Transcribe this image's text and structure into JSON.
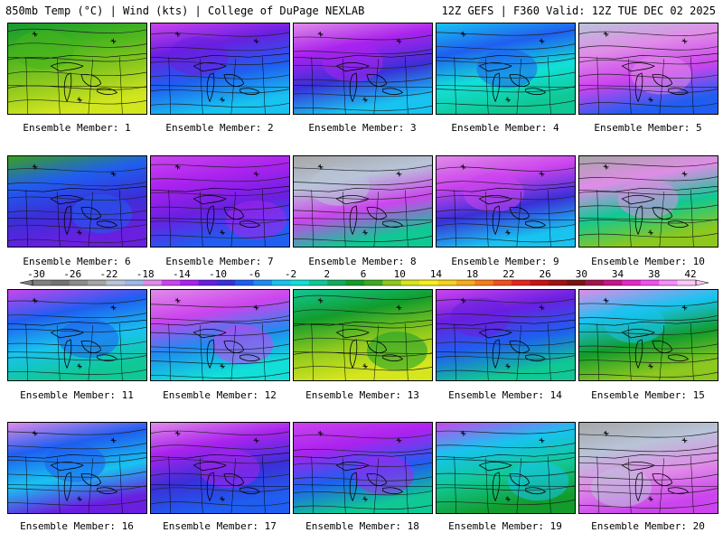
{
  "header": {
    "left": "850mb Temp (°C) | Wind (kts) | College of DuPage NEXLAB",
    "right": "12Z GEFS | F360 Valid: 12Z TUE DEC 02 2025"
  },
  "colorbar": {
    "labels": [
      "-30",
      "-26",
      "-22",
      "-18",
      "-14",
      "-10",
      "-6",
      "-2",
      "2",
      "6",
      "10",
      "14",
      "18",
      "22",
      "26",
      "30",
      "34",
      "38",
      "42"
    ],
    "colors": [
      "#808080",
      "#737373",
      "#8c8c8c",
      "#a6a6a6",
      "#b8c4d8",
      "#9db9e6",
      "#e08ce8",
      "#cc44ee",
      "#aa22ee",
      "#6a1fe0",
      "#3a2fd8",
      "#1f5ef0",
      "#1e8cf0",
      "#18c3f0",
      "#12e0d8",
      "#10c894",
      "#0fae5c",
      "#129c2c",
      "#3caa1e",
      "#8cc81e",
      "#d6e61e",
      "#f5f01e",
      "#f5d21e",
      "#f5aa1e",
      "#f57d1e",
      "#f0501e",
      "#e0281e",
      "#c81414",
      "#a01414",
      "#781414",
      "#a01450",
      "#c8148c",
      "#e628c8",
      "#f050f0",
      "#f88cf8",
      "#fcc8fc"
    ]
  },
  "members": [
    {
      "label": "Ensemble Member: 1",
      "stops": [
        "#149a32",
        "#46b41e",
        "#8cc81e",
        "#d2e61e"
      ]
    },
    {
      "label": "Ensemble Member: 2",
      "stops": [
        "#cc44ee",
        "#6a1fe0",
        "#1f5ef0",
        "#18c3f0"
      ]
    },
    {
      "label": "Ensemble Member: 3",
      "stops": [
        "#e08ce8",
        "#aa22ee",
        "#3a2fd8",
        "#18c3f0"
      ]
    },
    {
      "label": "Ensemble Member: 4",
      "stops": [
        "#18c3f0",
        "#1f5ef0",
        "#12e0d8",
        "#10c894"
      ]
    },
    {
      "label": "Ensemble Member: 5",
      "stops": [
        "#b8c4d8",
        "#e08ce8",
        "#cc44ee",
        "#1f5ef0"
      ]
    },
    {
      "label": "Ensemble Member: 6",
      "stops": [
        "#3aa01e",
        "#1f5ef0",
        "#3a2fd8",
        "#6a1fe0"
      ]
    },
    {
      "label": "Ensemble Member: 7",
      "stops": [
        "#cc44ee",
        "#aa22ee",
        "#6a1fe0",
        "#1f5ef0"
      ]
    },
    {
      "label": "Ensemble Member: 8",
      "stops": [
        "#a6a6a6",
        "#b8c4d8",
        "#cc44ee",
        "#10c894"
      ]
    },
    {
      "label": "Ensemble Member: 9",
      "stops": [
        "#e08ce8",
        "#cc44ee",
        "#3a2fd8",
        "#18c3f0"
      ]
    },
    {
      "label": "Ensemble Member: 10",
      "stops": [
        "#a6a6a6",
        "#e08ce8",
        "#10c894",
        "#8cc81e"
      ]
    },
    {
      "label": "Ensemble Member: 11",
      "stops": [
        "#cc44ee",
        "#1f5ef0",
        "#18c3f0",
        "#10c894"
      ]
    },
    {
      "label": "Ensemble Member: 12",
      "stops": [
        "#e08ce8",
        "#cc44ee",
        "#1e8cf0",
        "#12e0d8"
      ]
    },
    {
      "label": "Ensemble Member: 13",
      "stops": [
        "#10c894",
        "#129c2c",
        "#8cc81e",
        "#d6e61e"
      ]
    },
    {
      "label": "Ensemble Member: 14",
      "stops": [
        "#cc44ee",
        "#6a1fe0",
        "#1f5ef0",
        "#10c894"
      ]
    },
    {
      "label": "Ensemble Member: 15",
      "stops": [
        "#e08ce8",
        "#18c3f0",
        "#129c2c",
        "#8cc81e"
      ]
    },
    {
      "label": "Ensemble Member: 16",
      "stops": [
        "#e08ce8",
        "#1f5ef0",
        "#18c3f0",
        "#6a1fe0"
      ]
    },
    {
      "label": "Ensemble Member: 17",
      "stops": [
        "#e08ce8",
        "#aa22ee",
        "#3a2fd8",
        "#1f5ef0"
      ]
    },
    {
      "label": "Ensemble Member: 18",
      "stops": [
        "#cc44ee",
        "#aa22ee",
        "#1f5ef0",
        "#10c894"
      ]
    },
    {
      "label": "Ensemble Member: 19",
      "stops": [
        "#cc44ee",
        "#18c3f0",
        "#10c894",
        "#129c2c"
      ]
    },
    {
      "label": "Ensemble Member: 20",
      "stops": [
        "#a6a6a6",
        "#b8c4d8",
        "#e08ce8",
        "#cc44ee"
      ]
    }
  ]
}
